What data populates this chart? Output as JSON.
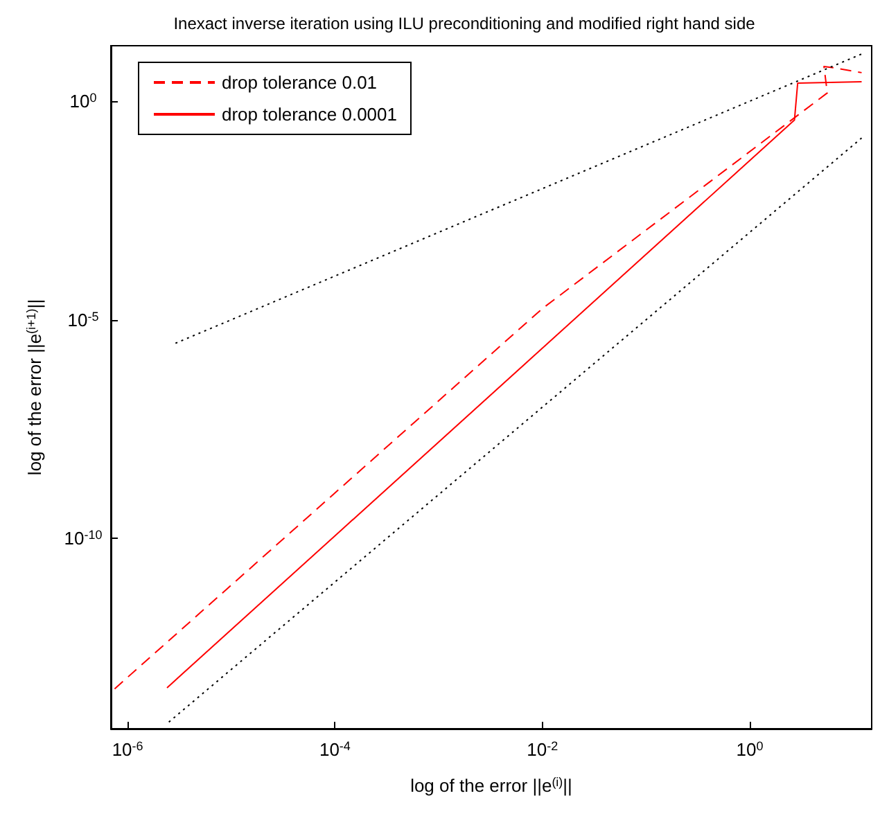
{
  "chart_data": {
    "type": "line",
    "title": "Inexact inverse iteration using ILU preconditioning and modified right hand side",
    "xlabel": "log of the error ||e$^{(i)}$||",
    "ylabel": "log of the error ||e$^{(i+1)}$||",
    "log": "xy",
    "grid": false,
    "legend": "top left",
    "marker": "none",
    "xlim": [
      6.9e-07,
      15
    ],
    "ylim": [
      4.4e-15,
      18.6
    ],
    "xticks": [
      {
        "value": 1e-06,
        "label": "10$^{-6}$"
      },
      {
        "value": 0.0001,
        "label": "10$^{-4}$"
      },
      {
        "value": 0.01,
        "label": "10$^{-2}$"
      },
      {
        "value": 1,
        "label": "10$^{0}$"
      }
    ],
    "yticks": [
      {
        "value": 1e-10,
        "label": "10$^{-10}$"
      },
      {
        "value": 1e-05,
        "label": "10$^{-5}$"
      },
      {
        "value": 1,
        "label": "10$^{0}$"
      }
    ],
    "series": [
      {
        "name": "drop tolerance 0.01",
        "color": "#ff0000",
        "line_style": "dashed",
        "x": [
          7.5e-07,
          0.01,
          5.6,
          5.2,
          6.2,
          12
        ],
        "values": [
          3.6e-14,
          1.8e-05,
          1.55,
          6.2,
          5.9,
          4.5
        ]
      },
      {
        "name": "drop tolerance 0.0001",
        "color": "#ff0000",
        "line_style": "solid",
        "x": [
          2.4e-06,
          2.7,
          2.9,
          12
        ],
        "values": [
          3.8e-14,
          0.37,
          2.6,
          2.8
        ]
      },
      {
        "color": "#000000",
        "line_style": "dotted",
        "x": [
          2.9e-06,
          12
        ],
        "values": [
          2.9e-06,
          12
        ]
      },
      {
        "color": "#000000",
        "line_style": "dotted",
        "x": [
          2.5e-06,
          12
        ],
        "values": [
          6.25e-15,
          0.144
        ]
      }
    ]
  }
}
